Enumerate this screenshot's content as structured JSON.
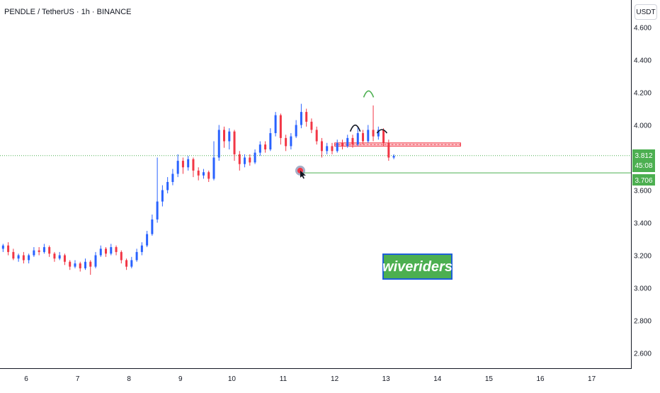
{
  "header": {
    "title": "PENDLE / TetherUS · 1h · BINANCE",
    "currency_button": "USDT"
  },
  "watermark": {
    "text": "wiveriders",
    "bg_color": "#4caf50",
    "border_color": "#1e5fd8"
  },
  "colors": {
    "up": "#2962ff",
    "down": "#f23645",
    "support_line": "#4caf50",
    "resistance_zone": "#f23645",
    "pattern_shoulders": "#131722",
    "pattern_head": "#4caf50",
    "target_marker": "#f23645"
  },
  "chart_data": {
    "type": "candlestick",
    "title": "PENDLE / TetherUS · 1h · BINANCE",
    "x_ticks": [
      "6",
      "7",
      "8",
      "9",
      "10",
      "11",
      "12",
      "13",
      "14",
      "15",
      "16",
      "17"
    ],
    "y_ticks": [
      "2.600",
      "2.800",
      "3.000",
      "3.200",
      "3.400",
      "3.600",
      "3.800",
      "4.000",
      "4.200",
      "4.400",
      "4.600"
    ],
    "ylim": [
      2.5,
      4.65
    ],
    "currency": "USDT",
    "last_price": {
      "value": "3.812",
      "countdown": "45:08",
      "color": "#4caf50"
    },
    "support_level": {
      "value": "3.706",
      "color": "#4caf50"
    },
    "resistance_zone": {
      "low": 3.87,
      "high": 3.89
    },
    "pattern": "head and shoulders",
    "candles": [
      [
        5.45,
        3.23,
        3.24,
        3.21,
        3.25
      ],
      [
        5.55,
        3.24,
        3.26,
        3.22,
        3.27
      ],
      [
        5.65,
        3.26,
        3.22,
        3.2,
        3.28
      ],
      [
        5.75,
        3.22,
        3.18,
        3.17,
        3.24
      ],
      [
        5.85,
        3.18,
        3.2,
        3.16,
        3.21
      ],
      [
        5.95,
        3.2,
        3.17,
        3.15,
        3.22
      ],
      [
        6.05,
        3.17,
        3.2,
        3.15,
        3.21
      ],
      [
        6.15,
        3.2,
        3.23,
        3.19,
        3.25
      ],
      [
        6.25,
        3.23,
        3.22,
        3.2,
        3.25
      ],
      [
        6.35,
        3.22,
        3.25,
        3.21,
        3.27
      ],
      [
        6.45,
        3.25,
        3.21,
        3.19,
        3.26
      ],
      [
        6.55,
        3.21,
        3.18,
        3.16,
        3.22
      ],
      [
        6.65,
        3.18,
        3.2,
        3.17,
        3.22
      ],
      [
        6.75,
        3.2,
        3.16,
        3.14,
        3.21
      ],
      [
        6.85,
        3.16,
        3.13,
        3.11,
        3.17
      ],
      [
        6.95,
        3.13,
        3.15,
        3.12,
        3.17
      ],
      [
        7.05,
        3.15,
        3.12,
        3.1,
        3.16
      ],
      [
        7.15,
        3.12,
        3.16,
        3.11,
        3.18
      ],
      [
        7.25,
        3.16,
        3.13,
        3.08,
        3.17
      ],
      [
        7.35,
        3.13,
        3.2,
        3.12,
        3.22
      ],
      [
        7.45,
        3.2,
        3.24,
        3.19,
        3.26
      ],
      [
        7.55,
        3.24,
        3.21,
        3.19,
        3.25
      ],
      [
        7.65,
        3.21,
        3.25,
        3.2,
        3.27
      ],
      [
        7.75,
        3.25,
        3.22,
        3.2,
        3.26
      ],
      [
        7.85,
        3.22,
        3.17,
        3.15,
        3.23
      ],
      [
        7.95,
        3.17,
        3.13,
        3.11,
        3.18
      ],
      [
        8.05,
        3.13,
        3.17,
        3.12,
        3.19
      ],
      [
        8.15,
        3.17,
        3.22,
        3.16,
        3.24
      ],
      [
        8.25,
        3.22,
        3.26,
        3.2,
        3.28
      ],
      [
        8.35,
        3.26,
        3.33,
        3.25,
        3.35
      ],
      [
        8.45,
        3.33,
        3.42,
        3.32,
        3.45
      ],
      [
        8.55,
        3.42,
        3.53,
        3.4,
        3.8
      ],
      [
        8.65,
        3.53,
        3.6,
        3.5,
        3.63
      ],
      [
        8.75,
        3.6,
        3.65,
        3.58,
        3.68
      ],
      [
        8.85,
        3.65,
        3.7,
        3.63,
        3.73
      ],
      [
        8.95,
        3.7,
        3.78,
        3.68,
        3.82
      ],
      [
        9.05,
        3.78,
        3.74,
        3.7,
        3.8
      ],
      [
        9.15,
        3.74,
        3.79,
        3.72,
        3.81
      ],
      [
        9.25,
        3.79,
        3.72,
        3.68,
        3.8
      ],
      [
        9.35,
        3.72,
        3.69,
        3.66,
        3.74
      ],
      [
        9.45,
        3.69,
        3.71,
        3.67,
        3.73
      ],
      [
        9.55,
        3.71,
        3.67,
        3.65,
        3.72
      ],
      [
        9.65,
        3.67,
        3.8,
        3.66,
        3.9
      ],
      [
        9.75,
        3.8,
        3.97,
        3.78,
        4.0
      ],
      [
        9.85,
        3.97,
        3.9,
        3.86,
        3.99
      ],
      [
        9.95,
        3.9,
        3.96,
        3.85,
        3.98
      ],
      [
        10.05,
        3.96,
        3.82,
        3.78,
        3.97
      ],
      [
        10.15,
        3.82,
        3.76,
        3.72,
        3.84
      ],
      [
        10.25,
        3.76,
        3.8,
        3.74,
        3.82
      ],
      [
        10.35,
        3.8,
        3.77,
        3.75,
        3.82
      ],
      [
        10.45,
        3.77,
        3.83,
        3.76,
        3.85
      ],
      [
        10.55,
        3.83,
        3.88,
        3.81,
        3.9
      ],
      [
        10.65,
        3.88,
        3.85,
        3.83,
        3.9
      ],
      [
        10.75,
        3.85,
        3.95,
        3.84,
        3.98
      ],
      [
        10.85,
        3.95,
        4.06,
        3.93,
        4.08
      ],
      [
        10.95,
        4.06,
        3.92,
        3.88,
        4.07
      ],
      [
        11.05,
        3.92,
        3.87,
        3.84,
        3.94
      ],
      [
        11.15,
        3.87,
        3.93,
        3.85,
        3.95
      ],
      [
        11.25,
        3.93,
        4.0,
        3.92,
        4.03
      ],
      [
        11.35,
        4.0,
        4.08,
        3.98,
        4.13
      ],
      [
        11.45,
        4.08,
        4.02,
        3.99,
        4.1
      ],
      [
        11.55,
        4.02,
        3.97,
        3.95,
        4.04
      ],
      [
        11.65,
        3.97,
        3.9,
        3.88,
        3.99
      ],
      [
        11.75,
        3.9,
        3.84,
        3.8,
        3.92
      ],
      [
        11.85,
        3.84,
        3.87,
        3.82,
        3.89
      ],
      [
        11.95,
        3.87,
        3.84,
        3.82,
        3.89
      ],
      [
        12.05,
        3.84,
        3.89,
        3.83,
        3.91
      ],
      [
        12.15,
        3.89,
        3.87,
        3.85,
        3.91
      ],
      [
        12.25,
        3.87,
        3.92,
        3.86,
        3.94
      ],
      [
        12.35,
        3.92,
        3.88,
        3.86,
        3.94
      ],
      [
        12.45,
        3.88,
        3.95,
        3.87,
        3.99
      ],
      [
        12.55,
        3.95,
        3.9,
        3.88,
        3.97
      ],
      [
        12.65,
        3.9,
        3.97,
        3.89,
        4.0
      ],
      [
        12.75,
        3.97,
        3.93,
        3.9,
        4.12
      ],
      [
        12.85,
        3.93,
        3.97,
        3.91,
        3.99
      ],
      [
        12.95,
        3.97,
        3.89,
        3.87,
        3.98
      ],
      [
        13.05,
        3.89,
        3.8,
        3.78,
        3.91
      ],
      [
        13.15,
        3.8,
        3.81,
        3.79,
        3.82
      ]
    ]
  }
}
